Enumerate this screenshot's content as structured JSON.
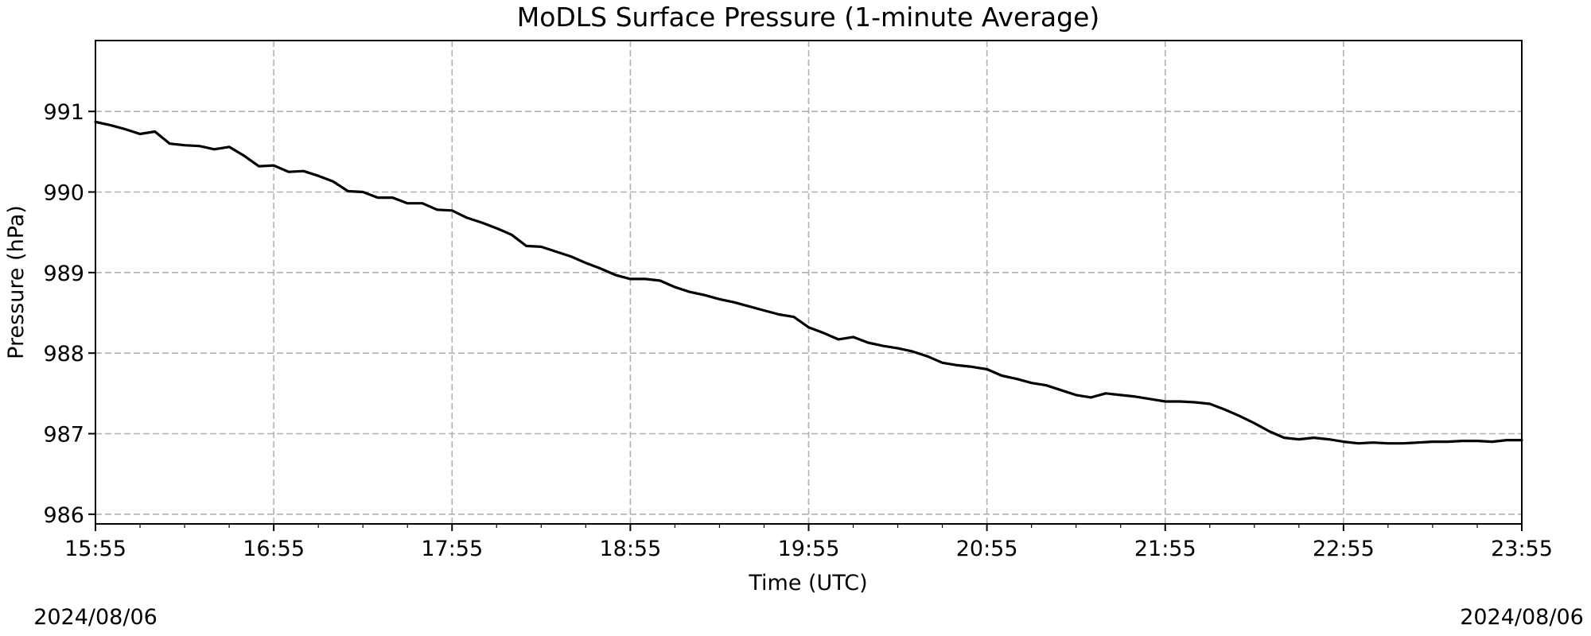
{
  "chart_data": {
    "type": "line",
    "title": "MoDLS Surface Pressure (1-minute Average)",
    "xlabel": "Time (UTC)",
    "ylabel": "Pressure (hPa)",
    "date_start": "2024/08/06",
    "date_end": "2024/08/06",
    "xlim": [
      "15:55",
      "23:55"
    ],
    "ylim": [
      985.88,
      991.88
    ],
    "x_ticks": [
      "15:55",
      "16:55",
      "17:55",
      "18:55",
      "19:55",
      "20:55",
      "21:55",
      "22:55",
      "23:55"
    ],
    "y_ticks": [
      986,
      987,
      988,
      989,
      990,
      991
    ],
    "grid": true,
    "line_color": "#000000",
    "series": [
      {
        "x": [
          "15:55",
          "16:00",
          "16:05",
          "16:10",
          "16:15",
          "16:20",
          "16:25",
          "16:30",
          "16:35",
          "16:40",
          "16:45",
          "16:50",
          "16:55",
          "17:00",
          "17:05",
          "17:10",
          "17:15",
          "17:20",
          "17:25",
          "17:30",
          "17:35",
          "17:40",
          "17:45",
          "17:50",
          "17:55",
          "18:00",
          "18:05",
          "18:10",
          "18:15",
          "18:20",
          "18:25",
          "18:30",
          "18:35",
          "18:40",
          "18:45",
          "18:50",
          "18:55",
          "19:00",
          "19:05",
          "19:10",
          "19:15",
          "19:20",
          "19:25",
          "19:30",
          "19:35",
          "19:40",
          "19:45",
          "19:50",
          "19:55",
          "20:00",
          "20:05",
          "20:10",
          "20:15",
          "20:20",
          "20:25",
          "20:30",
          "20:35",
          "20:40",
          "20:45",
          "20:50",
          "20:55",
          "21:00",
          "21:05",
          "21:10",
          "21:15",
          "21:20",
          "21:25",
          "21:30",
          "21:35",
          "21:40",
          "21:45",
          "21:50",
          "21:55",
          "22:00",
          "22:05",
          "22:10",
          "22:15",
          "22:20",
          "22:25",
          "22:30",
          "22:35",
          "22:40",
          "22:45",
          "22:50",
          "22:55",
          "23:00",
          "23:05",
          "23:10",
          "23:15",
          "23:20",
          "23:25",
          "23:30",
          "23:35",
          "23:40",
          "23:45",
          "23:50",
          "23:55"
        ],
        "values": [
          990.87,
          990.83,
          990.78,
          990.72,
          990.75,
          990.6,
          990.58,
          990.57,
          990.53,
          990.56,
          990.45,
          990.32,
          990.33,
          990.25,
          990.26,
          990.2,
          990.13,
          990.01,
          990.0,
          989.93,
          989.93,
          989.86,
          989.86,
          989.78,
          989.77,
          989.68,
          989.62,
          989.55,
          989.47,
          989.33,
          989.32,
          989.26,
          989.2,
          989.12,
          989.05,
          988.97,
          988.92,
          988.92,
          988.9,
          988.82,
          988.76,
          988.72,
          988.67,
          988.63,
          988.58,
          988.53,
          988.48,
          988.45,
          988.32,
          988.25,
          988.17,
          988.2,
          988.13,
          988.09,
          988.06,
          988.02,
          987.96,
          987.88,
          987.85,
          987.83,
          987.8,
          987.72,
          987.68,
          987.63,
          987.6,
          987.54,
          987.48,
          987.45,
          987.5,
          987.48,
          987.46,
          987.43,
          987.4,
          987.4,
          987.39,
          987.37,
          987.3,
          987.22,
          987.13,
          987.03,
          986.95,
          986.93,
          986.95,
          986.93,
          986.9,
          986.88,
          986.89,
          986.88,
          986.88,
          986.89,
          986.9,
          986.9,
          986.91,
          986.91,
          986.9,
          986.92,
          986.92
        ]
      }
    ]
  }
}
